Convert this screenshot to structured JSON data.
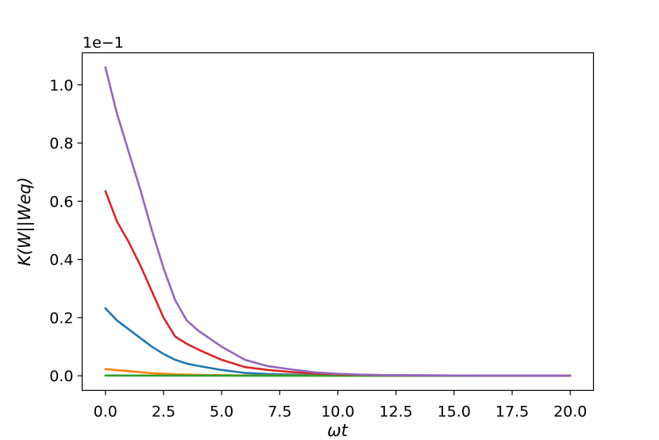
{
  "chart_data": {
    "type": "line",
    "xlabel": "ωt",
    "ylabel": "K(W||Weq)",
    "y_offset_text": "1e−1",
    "xlim": [
      -1.0,
      21.0
    ],
    "ylim": [
      -0.05,
      1.11
    ],
    "x_ticks": [
      0.0,
      2.5,
      5.0,
      7.5,
      10.0,
      12.5,
      15.0,
      17.5,
      20.0
    ],
    "x_tick_labels": [
      "0.0",
      "2.5",
      "5.0",
      "7.5",
      "10.0",
      "12.5",
      "15.0",
      "17.5",
      "20.0"
    ],
    "y_ticks": [
      0.0,
      0.2,
      0.4,
      0.6,
      0.8,
      1.0
    ],
    "y_tick_labels": [
      "0.0",
      "0.2",
      "0.4",
      "0.6",
      "0.8",
      "1.0"
    ],
    "grid": false,
    "legend": false,
    "series": [
      {
        "color": "#1f77b4",
        "x": [
          0,
          0.5,
          1,
          1.5,
          2,
          2.5,
          3,
          3.5,
          4,
          5,
          6,
          7,
          8,
          9,
          10,
          12,
          15,
          20
        ],
        "y": [
          0.232,
          0.19,
          0.16,
          0.13,
          0.1,
          0.075,
          0.055,
          0.042,
          0.034,
          0.02,
          0.01,
          0.006,
          0.004,
          0.003,
          0.002,
          0.001,
          0.0005,
          0.0002
        ]
      },
      {
        "color": "#ff7f0e",
        "x": [
          0,
          1,
          2,
          3,
          4,
          5,
          6,
          8,
          10,
          15,
          20
        ],
        "y": [
          0.023,
          0.016,
          0.009,
          0.005,
          0.003,
          0.002,
          0.0015,
          0.001,
          0.0005,
          0.0002,
          0.0001
        ]
      },
      {
        "color": "#2ca02c",
        "x": [
          0,
          5,
          10,
          15,
          20
        ],
        "y": [
          0.001,
          0.0005,
          0.0003,
          0.0001,
          0.0
        ]
      },
      {
        "color": "#d62728",
        "x": [
          0,
          0.5,
          1,
          1.5,
          2,
          2.5,
          3,
          3.5,
          4,
          5,
          6,
          7,
          8,
          9,
          10,
          12,
          15,
          20
        ],
        "y": [
          0.635,
          0.53,
          0.46,
          0.38,
          0.29,
          0.2,
          0.135,
          0.11,
          0.09,
          0.055,
          0.03,
          0.02,
          0.013,
          0.008,
          0.005,
          0.002,
          0.001,
          0.0003
        ]
      },
      {
        "color": "#9467bd",
        "x": [
          0,
          0.5,
          1,
          1.5,
          2,
          2.5,
          3,
          3.5,
          4,
          5,
          6,
          7,
          8,
          9,
          10,
          11,
          12,
          15,
          20
        ],
        "y": [
          1.06,
          0.9,
          0.77,
          0.64,
          0.5,
          0.37,
          0.26,
          0.19,
          0.155,
          0.1,
          0.055,
          0.033,
          0.022,
          0.012,
          0.007,
          0.004,
          0.0025,
          0.001,
          0.0003
        ]
      }
    ]
  }
}
